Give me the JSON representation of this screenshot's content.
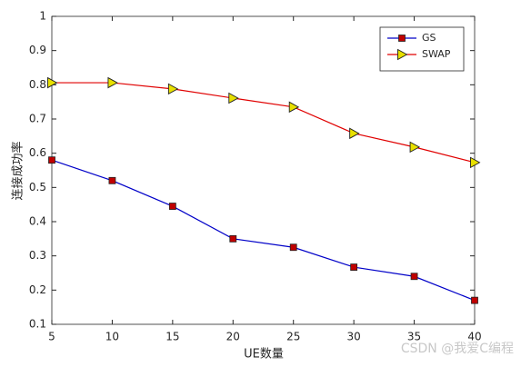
{
  "chart_data": {
    "type": "line",
    "x": [
      5,
      10,
      15,
      20,
      25,
      30,
      35,
      40
    ],
    "series": [
      {
        "name": "GS",
        "color": "#0000c8",
        "marker": "square",
        "marker_color": "#c00000",
        "values": [
          0.58,
          0.52,
          0.445,
          0.35,
          0.325,
          0.267,
          0.24,
          0.17
        ]
      },
      {
        "name": "SWAP",
        "color": "#e00000",
        "marker": "triangle-right",
        "marker_color": "#e8e000",
        "values": [
          0.806,
          0.806,
          0.788,
          0.761,
          0.735,
          0.658,
          0.618,
          0.573
        ]
      }
    ],
    "xlim": [
      5,
      40
    ],
    "xticks": [
      5,
      10,
      15,
      20,
      25,
      30,
      35,
      40
    ],
    "ylim": [
      0.1,
      1
    ],
    "yticks": [
      0.1,
      0.2,
      0.3,
      0.4,
      0.5,
      0.6,
      0.7,
      0.8,
      0.9,
      1
    ],
    "x_label": "UE数量",
    "y_label": "连接成功率",
    "grid": false,
    "legend": "northeast",
    "watermark": "CSDN @我爱C编程"
  }
}
